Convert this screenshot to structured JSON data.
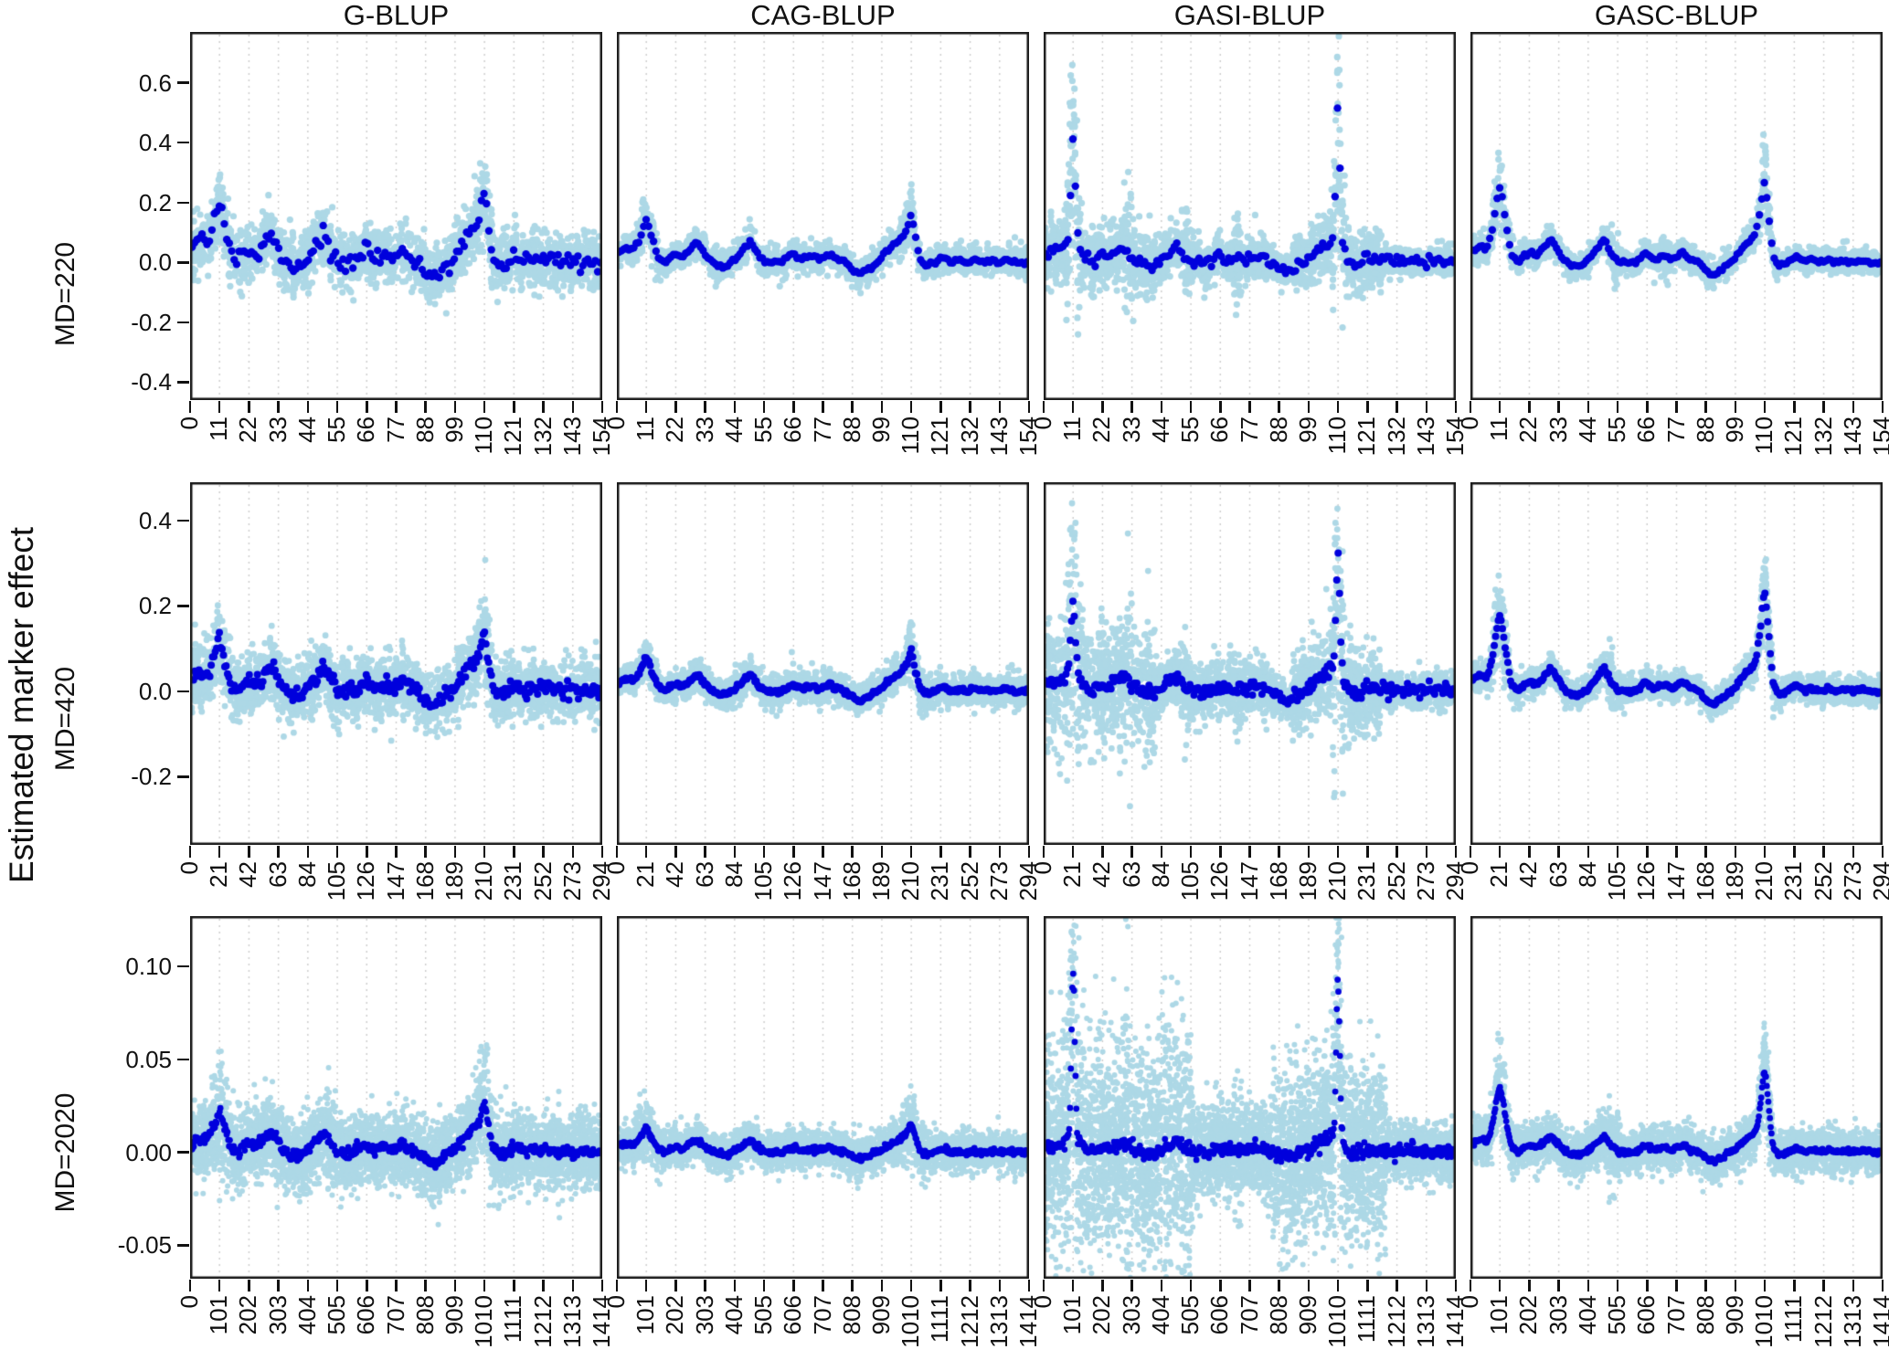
{
  "chart_data": {
    "type": "scatter",
    "ylabel": "Estimated marker effect",
    "column_titles": [
      "G-BLUP",
      "CAG-BLUP",
      "GASI-BLUP",
      "GASC-BLUP"
    ],
    "legend": "none",
    "grid": "vertical-dotted",
    "colors": {
      "cloud": "#ADD8E6",
      "mean": "#0000DD",
      "grid": "#cccccc",
      "axis": "#1a1a1a",
      "text": "#000000"
    },
    "base_profile": [
      [
        0.0,
        0.21
      ],
      [
        0.013,
        0.29
      ],
      [
        0.025,
        0.36
      ],
      [
        0.04,
        0.29
      ],
      [
        0.055,
        0.57
      ],
      [
        0.0714,
        1.0
      ],
      [
        0.085,
        0.57
      ],
      [
        0.1,
        0.14
      ],
      [
        0.115,
        0.0
      ],
      [
        0.13,
        0.14
      ],
      [
        0.145,
        0.21
      ],
      [
        0.16,
        0.14
      ],
      [
        0.175,
        0.29
      ],
      [
        0.195,
        0.5
      ],
      [
        0.21,
        0.29
      ],
      [
        0.225,
        0.07
      ],
      [
        0.245,
        -0.07
      ],
      [
        0.27,
        -0.07
      ],
      [
        0.3,
        0.21
      ],
      [
        0.325,
        0.5
      ],
      [
        0.34,
        0.21
      ],
      [
        0.36,
        0.0
      ],
      [
        0.4,
        0.0
      ],
      [
        0.425,
        0.21
      ],
      [
        0.445,
        0.07
      ],
      [
        0.47,
        0.14
      ],
      [
        0.49,
        0.07
      ],
      [
        0.515,
        0.21
      ],
      [
        0.535,
        0.07
      ],
      [
        0.555,
        0.0
      ],
      [
        0.575,
        -0.21
      ],
      [
        0.59,
        -0.29
      ],
      [
        0.61,
        -0.14
      ],
      [
        0.64,
        0.07
      ],
      [
        0.665,
        0.36
      ],
      [
        0.69,
        0.57
      ],
      [
        0.705,
        0.86
      ],
      [
        0.714,
        1.21
      ],
      [
        0.725,
        0.57
      ],
      [
        0.735,
        0.07
      ],
      [
        0.75,
        -0.07
      ],
      [
        0.77,
        0.0
      ],
      [
        0.79,
        0.14
      ],
      [
        0.81,
        0.0
      ],
      [
        0.83,
        0.07
      ],
      [
        0.85,
        0.0
      ],
      [
        0.87,
        0.07
      ],
      [
        0.89,
        0.0
      ],
      [
        0.91,
        0.04
      ],
      [
        0.93,
        0.0
      ],
      [
        0.95,
        0.04
      ],
      [
        0.97,
        0.0
      ],
      [
        1.0,
        0.0
      ]
    ],
    "rows": [
      {
        "label": "MD=220",
        "ylim": [
          -0.46,
          0.77
        ],
        "yticks": [
          0.6,
          0.4,
          0.2,
          0.0,
          -0.2,
          -0.4
        ],
        "ytick_labels": [
          "0.6",
          "0.4",
          "0.2",
          "0.0",
          "-0.2",
          "-0.4"
        ],
        "xmax": 154,
        "xticks": [
          0,
          11,
          22,
          33,
          44,
          55,
          66,
          77,
          88,
          99,
          110,
          121,
          132,
          143,
          154
        ],
        "xtick_labels": [
          "0",
          "11",
          "22",
          "33",
          "44",
          "55",
          "66",
          "77",
          "88",
          "99",
          "110",
          "121",
          "132",
          "143",
          "154"
        ],
        "cloud_r": 3.6,
        "mean_r": 4.2,
        "mean_samples": 165,
        "panels": [
          {
            "method": "G-BLUP",
            "seed": 101,
            "profile_scale": 0.2,
            "mean_jitter": 0.013,
            "noise_sd": 0.045,
            "noise_regions": [],
            "spikes": [],
            "spike_noise": [
              {
                "x": 0.0714,
                "sd": 0.018,
                "w": 0.02
              },
              {
                "x": 0.714,
                "sd": 0.03,
                "w": 0.015
              }
            ],
            "n_cloud": 2400
          },
          {
            "method": "CAG-BLUP",
            "seed": 102,
            "profile_scale": 0.14,
            "mean_jitter": 0.004,
            "noise_sd": 0.024,
            "noise_regions": [],
            "spikes": [],
            "spike_noise": [
              {
                "x": 0.0714,
                "sd": 0.012,
                "w": 0.02
              },
              {
                "x": 0.714,
                "sd": 0.02,
                "w": 0.015
              }
            ],
            "n_cloud": 2200
          },
          {
            "method": "GASI-BLUP",
            "seed": 103,
            "profile_scale": 0.11,
            "mean_jitter": 0.01,
            "noise_sd": 0.018,
            "noise_regions": [
              [
                0,
                0.27,
                3.2
              ],
              [
                0.27,
                0.55,
                2.0
              ],
              [
                0.55,
                0.6,
                1.4
              ],
              [
                0.6,
                0.82,
                3.0
              ],
              [
                0.82,
                1,
                1.2
              ]
            ],
            "spikes": [
              {
                "x": 0.0714,
                "amp": 0.3,
                "w": 0.005
              },
              {
                "x": 0.714,
                "amp": 0.4,
                "w": 0.0045
              }
            ],
            "spike_noise": [
              {
                "x": 0.0714,
                "sd": 0.13,
                "w": 0.01
              },
              {
                "x": 0.714,
                "sd": 0.15,
                "w": 0.009
              },
              {
                "x": 0.205,
                "sd": 0.055,
                "w": 0.006
              },
              {
                "x": 0.345,
                "sd": 0.05,
                "w": 0.006
              },
              {
                "x": 0.47,
                "sd": 0.04,
                "w": 0.006
              }
            ],
            "n_cloud": 2600
          },
          {
            "method": "GASC-BLUP",
            "seed": 104,
            "profile_scale": 0.155,
            "mean_jitter": 0.003,
            "noise_sd": 0.02,
            "noise_regions": [],
            "spikes": [
              {
                "x": 0.0714,
                "amp": 0.1,
                "w": 0.012
              },
              {
                "x": 0.714,
                "amp": 0.09,
                "w": 0.01
              }
            ],
            "spike_noise": [
              {
                "x": 0.0714,
                "sd": 0.04,
                "w": 0.015
              },
              {
                "x": 0.714,
                "sd": 0.045,
                "w": 0.012
              },
              {
                "x": 0.345,
                "sd": 0.03,
                "w": 0.008
              },
              {
                "x": 0.47,
                "sd": 0.025,
                "w": 0.008
              }
            ],
            "n_cloud": 2200
          }
        ]
      },
      {
        "label": "MD=420",
        "ylim": [
          -0.36,
          0.49
        ],
        "yticks": [
          0.4,
          0.2,
          0.0,
          -0.2
        ],
        "ytick_labels": [
          "0.4",
          "0.2",
          "0.0",
          "-0.2"
        ],
        "xmax": 294,
        "xticks": [
          0,
          21,
          42,
          63,
          84,
          105,
          126,
          147,
          168,
          189,
          210,
          231,
          252,
          273,
          294
        ],
        "xtick_labels": [
          "0",
          "21",
          "42",
          "63",
          "84",
          "105",
          "126",
          "147",
          "168",
          "189",
          "210",
          "231",
          "252",
          "273",
          "294"
        ],
        "cloud_r": 3.4,
        "mean_r": 4.0,
        "mean_samples": 300,
        "panels": [
          {
            "method": "G-BLUP",
            "seed": 201,
            "profile_scale": 0.115,
            "mean_jitter": 0.01,
            "noise_sd": 0.034,
            "noise_regions": [],
            "spikes": [],
            "spike_noise": [
              {
                "x": 0.714,
                "sd": 0.02,
                "w": 0.015
              },
              {
                "x": 0.0714,
                "sd": 0.012,
                "w": 0.02
              }
            ],
            "n_cloud": 3000
          },
          {
            "method": "CAG-BLUP",
            "seed": 202,
            "profile_scale": 0.08,
            "mean_jitter": 0.003,
            "noise_sd": 0.018,
            "noise_regions": [],
            "spikes": [],
            "spike_noise": [
              {
                "x": 0.714,
                "sd": 0.012,
                "w": 0.02
              }
            ],
            "n_cloud": 2800
          },
          {
            "method": "GASI-BLUP",
            "seed": 203,
            "profile_scale": 0.075,
            "mean_jitter": 0.008,
            "noise_sd": 0.014,
            "noise_regions": [
              [
                0,
                0.27,
                5.0
              ],
              [
                0.27,
                0.55,
                2.2
              ],
              [
                0.55,
                0.6,
                1.5
              ],
              [
                0.6,
                0.82,
                3.5
              ],
              [
                0.82,
                1,
                1.3
              ]
            ],
            "spikes": [
              {
                "x": 0.0714,
                "amp": 0.13,
                "w": 0.005
              },
              {
                "x": 0.714,
                "amp": 0.23,
                "w": 0.0045
              }
            ],
            "spike_noise": [
              {
                "x": 0.0714,
                "sd": 0.09,
                "w": 0.012
              },
              {
                "x": 0.714,
                "sd": 0.12,
                "w": 0.01
              },
              {
                "x": 0.205,
                "sd": 0.05,
                "w": 0.006
              },
              {
                "x": 0.345,
                "sd": 0.05,
                "w": 0.006
              },
              {
                "x": 0.47,
                "sd": 0.04,
                "w": 0.006
              }
            ],
            "n_cloud": 3200
          },
          {
            "method": "GASC-BLUP",
            "seed": 204,
            "profile_scale": 0.11,
            "mean_jitter": 0.0025,
            "noise_sd": 0.016,
            "noise_regions": [],
            "spikes": [
              {
                "x": 0.0714,
                "amp": 0.07,
                "w": 0.012
              },
              {
                "x": 0.714,
                "amp": 0.1,
                "w": 0.01
              }
            ],
            "spike_noise": [
              {
                "x": 0.0714,
                "sd": 0.035,
                "w": 0.015
              },
              {
                "x": 0.714,
                "sd": 0.04,
                "w": 0.012
              },
              {
                "x": 0.345,
                "sd": 0.025,
                "w": 0.008
              }
            ],
            "n_cloud": 2800
          }
        ]
      },
      {
        "label": "MD=2020",
        "ylim": [
          -0.068,
          0.127
        ],
        "yticks": [
          0.1,
          0.05,
          0.0,
          -0.05
        ],
        "ytick_labels": [
          "0.10",
          "0.05",
          "0.00",
          "-0.05"
        ],
        "xmax": 1414,
        "xticks": [
          0,
          101,
          202,
          303,
          404,
          505,
          606,
          707,
          808,
          909,
          1010,
          1111,
          1212,
          1313,
          1414
        ],
        "xtick_labels": [
          "0",
          "101",
          "202",
          "303",
          "404",
          "505",
          "606",
          "707",
          "808",
          "909",
          "1010",
          "1111",
          "1212",
          "1313",
          "1414"
        ],
        "cloud_r": 3.0,
        "mean_r": 3.4,
        "mean_samples": 520,
        "panels": [
          {
            "method": "G-BLUP",
            "seed": 301,
            "profile_scale": 0.022,
            "mean_jitter": 0.0015,
            "noise_sd": 0.0095,
            "noise_regions": [],
            "spikes": [],
            "spike_noise": [
              {
                "x": 0.0714,
                "sd": 0.006,
                "w": 0.012
              },
              {
                "x": 0.714,
                "sd": 0.006,
                "w": 0.012
              },
              {
                "x": 0.345,
                "sd": 0.004,
                "w": 0.01
              },
              {
                "x": 0.205,
                "sd": 0.003,
                "w": 0.008
              }
            ],
            "n_cloud": 5200
          },
          {
            "method": "CAG-BLUP",
            "seed": 302,
            "profile_scale": 0.013,
            "mean_jitter": 0.0008,
            "noise_sd": 0.0048,
            "noise_regions": [],
            "spikes": [],
            "spike_noise": [
              {
                "x": 0.0714,
                "sd": 0.003,
                "w": 0.02
              },
              {
                "x": 0.714,
                "sd": 0.004,
                "w": 0.02
              }
            ],
            "n_cloud": 4800
          },
          {
            "method": "GASI-BLUP",
            "seed": 303,
            "profile_scale": 0.012,
            "mean_jitter": 0.0018,
            "noise_sd": 0.007,
            "noise_regions": [
              [
                0,
                0.36,
                4.0
              ],
              [
                0.36,
                0.55,
                1.6
              ],
              [
                0.55,
                0.83,
                3.3
              ],
              [
                0.83,
                1,
                1.0
              ]
            ],
            "spikes": [
              {
                "x": 0.0714,
                "amp": 0.085,
                "w": 0.004
              },
              {
                "x": 0.714,
                "amp": 0.08,
                "w": 0.004
              }
            ],
            "spike_noise": [
              {
                "x": 0.0714,
                "sd": 0.026,
                "w": 0.01
              },
              {
                "x": 0.714,
                "sd": 0.024,
                "w": 0.01
              },
              {
                "x": 0.205,
                "sd": 0.018,
                "w": 0.006
              },
              {
                "x": 0.3,
                "sd": 0.012,
                "w": 0.01
              },
              {
                "x": 0.345,
                "sd": 0.012,
                "w": 0.008
              },
              {
                "x": 0.47,
                "sd": 0.008,
                "w": 0.006
              }
            ],
            "n_cloud": 6000
          },
          {
            "method": "GASC-BLUP",
            "seed": 304,
            "profile_scale": 0.018,
            "mean_jitter": 0.0007,
            "noise_sd": 0.0055,
            "noise_regions": [],
            "spikes": [
              {
                "x": 0.0714,
                "amp": 0.017,
                "w": 0.012
              },
              {
                "x": 0.714,
                "amp": 0.022,
                "w": 0.009
              }
            ],
            "spike_noise": [
              {
                "x": 0.0714,
                "sd": 0.008,
                "w": 0.015
              },
              {
                "x": 0.714,
                "sd": 0.009,
                "w": 0.012
              },
              {
                "x": 0.345,
                "sd": 0.006,
                "w": 0.01
              }
            ],
            "n_cloud": 4800
          }
        ]
      }
    ]
  }
}
